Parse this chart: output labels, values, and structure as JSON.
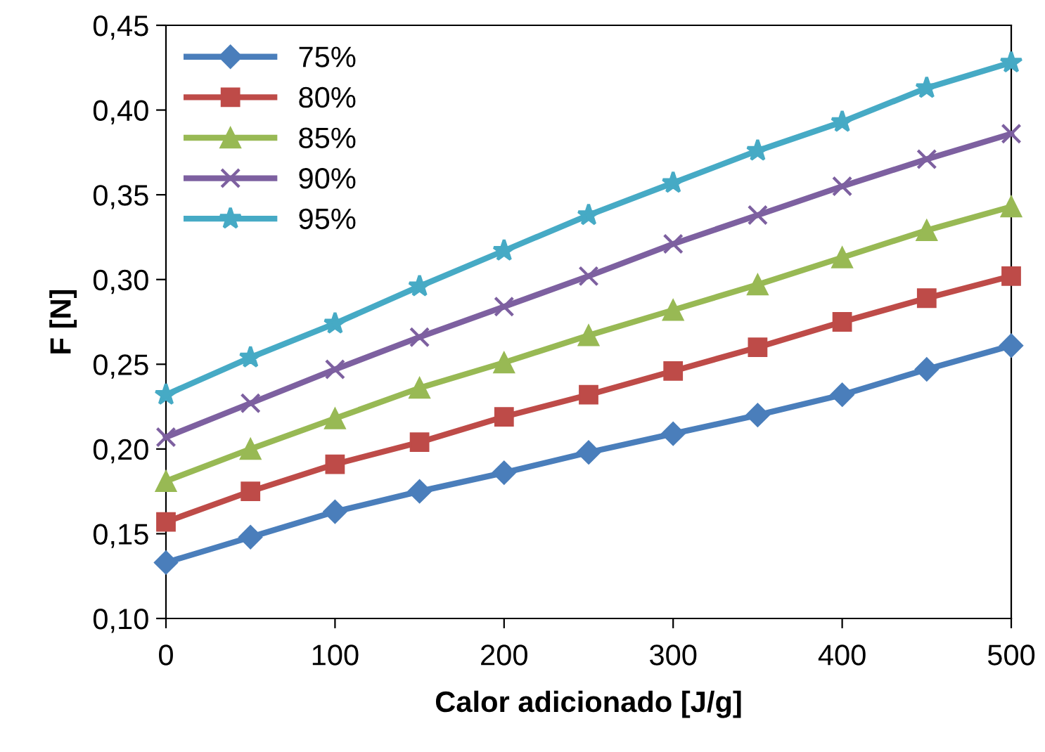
{
  "chart_data": {
    "type": "line",
    "xlabel": "Calor adicionado [J/g]",
    "ylabel": "F [N]",
    "x": [
      0,
      50,
      100,
      150,
      200,
      250,
      300,
      350,
      400,
      450,
      500
    ],
    "series": [
      {
        "name": "75%",
        "color": "#4a7ebb",
        "marker": "diamond",
        "values": [
          0.133,
          0.148,
          0.163,
          0.175,
          0.186,
          0.198,
          0.209,
          0.22,
          0.232,
          0.247,
          0.261
        ]
      },
      {
        "name": "80%",
        "color": "#be4b48",
        "marker": "square",
        "values": [
          0.157,
          0.175,
          0.191,
          0.204,
          0.219,
          0.232,
          0.246,
          0.26,
          0.275,
          0.289,
          0.302
        ]
      },
      {
        "name": "85%",
        "color": "#98b954",
        "marker": "triangle",
        "values": [
          0.181,
          0.2,
          0.218,
          0.236,
          0.251,
          0.267,
          0.282,
          0.297,
          0.313,
          0.329,
          0.343
        ]
      },
      {
        "name": "90%",
        "color": "#7d60a0",
        "marker": "cross",
        "values": [
          0.207,
          0.227,
          0.247,
          0.266,
          0.284,
          0.302,
          0.321,
          0.338,
          0.355,
          0.371,
          0.386
        ]
      },
      {
        "name": "95%",
        "color": "#46aac5",
        "marker": "star",
        "values": [
          0.232,
          0.254,
          0.274,
          0.296,
          0.317,
          0.338,
          0.357,
          0.376,
          0.393,
          0.413,
          0.428
        ]
      }
    ],
    "xlim": [
      0,
      500
    ],
    "xticks": [
      0,
      100,
      200,
      300,
      400,
      500
    ],
    "ylim": [
      0.1,
      0.45
    ],
    "yticks": [
      {
        "value": 0.1,
        "label": "0,10"
      },
      {
        "value": 0.15,
        "label": "0,15"
      },
      {
        "value": 0.2,
        "label": "0,20"
      },
      {
        "value": 0.25,
        "label": "0,25"
      },
      {
        "value": 0.3,
        "label": "0,30"
      },
      {
        "value": 0.35,
        "label": "0,35"
      },
      {
        "value": 0.4,
        "label": "0,40"
      },
      {
        "value": 0.45,
        "label": "0,45"
      }
    ],
    "grid": false,
    "legend": "top left",
    "line_style": "solid"
  }
}
